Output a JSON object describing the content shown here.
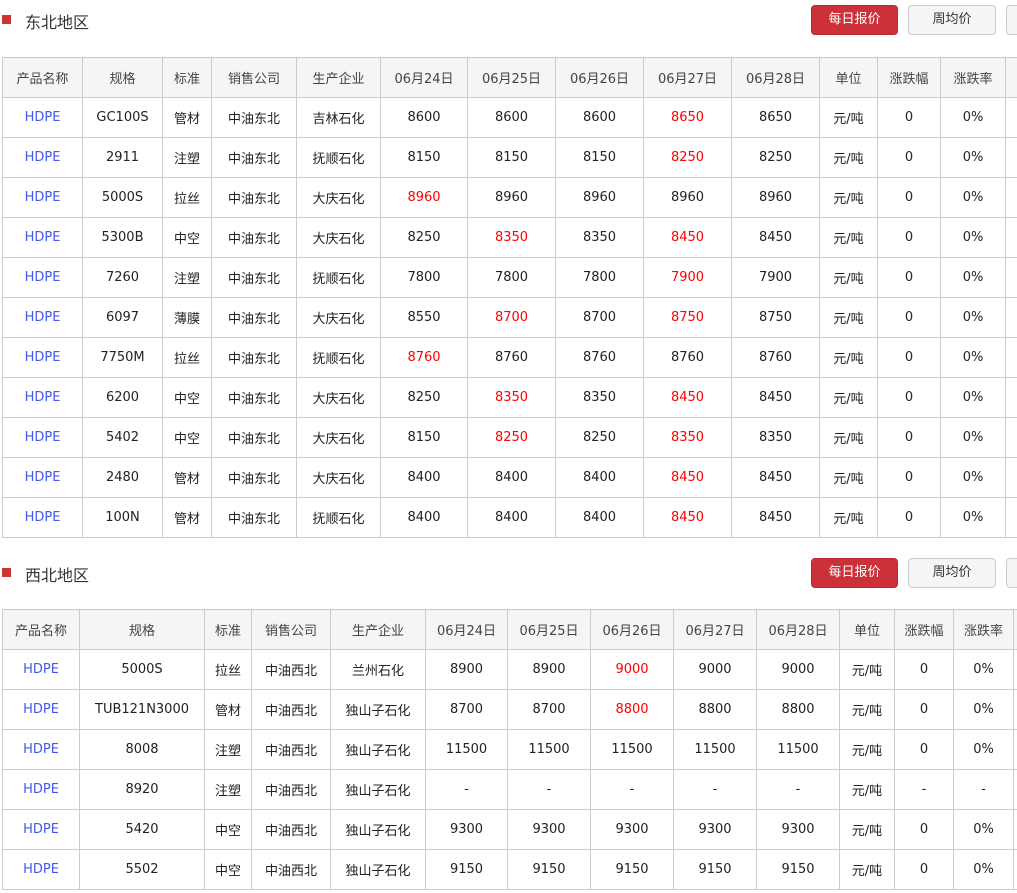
{
  "buttons": {
    "daily": "每日报价",
    "weekly": "周均价"
  },
  "colors": {
    "accent": "#cc3039",
    "link": "#4457f0",
    "rise": "#ff0000"
  },
  "sections": [
    {
      "title": "东北地区",
      "headers": [
        "产品名称",
        "规格",
        "标准",
        "销售公司",
        "生产企业",
        "06月24日",
        "06月25日",
        "06月26日",
        "06月27日",
        "06月28日",
        "单位",
        "涨跌幅",
        "涨跌率"
      ],
      "rows": [
        {
          "cells": [
            "HDPE",
            "GC100S",
            "管材",
            "中油东北",
            "吉林石化",
            "8600",
            "8600",
            "8600",
            "8650",
            "8650",
            "元/吨",
            "0",
            "0%"
          ],
          "red": [
            8
          ]
        },
        {
          "cells": [
            "HDPE",
            "2911",
            "注塑",
            "中油东北",
            "抚顺石化",
            "8150",
            "8150",
            "8150",
            "8250",
            "8250",
            "元/吨",
            "0",
            "0%"
          ],
          "red": [
            8
          ]
        },
        {
          "cells": [
            "HDPE",
            "5000S",
            "拉丝",
            "中油东北",
            "大庆石化",
            "8960",
            "8960",
            "8960",
            "8960",
            "8960",
            "元/吨",
            "0",
            "0%"
          ],
          "red": [
            5
          ]
        },
        {
          "cells": [
            "HDPE",
            "5300B",
            "中空",
            "中油东北",
            "大庆石化",
            "8250",
            "8350",
            "8350",
            "8450",
            "8450",
            "元/吨",
            "0",
            "0%"
          ],
          "red": [
            6,
            8
          ]
        },
        {
          "cells": [
            "HDPE",
            "7260",
            "注塑",
            "中油东北",
            "抚顺石化",
            "7800",
            "7800",
            "7800",
            "7900",
            "7900",
            "元/吨",
            "0",
            "0%"
          ],
          "red": [
            8
          ]
        },
        {
          "cells": [
            "HDPE",
            "6097",
            "薄膜",
            "中油东北",
            "大庆石化",
            "8550",
            "8700",
            "8700",
            "8750",
            "8750",
            "元/吨",
            "0",
            "0%"
          ],
          "red": [
            6,
            8
          ]
        },
        {
          "cells": [
            "HDPE",
            "7750M",
            "拉丝",
            "中油东北",
            "抚顺石化",
            "8760",
            "8760",
            "8760",
            "8760",
            "8760",
            "元/吨",
            "0",
            "0%"
          ],
          "red": [
            5
          ]
        },
        {
          "cells": [
            "HDPE",
            "6200",
            "中空",
            "中油东北",
            "大庆石化",
            "8250",
            "8350",
            "8350",
            "8450",
            "8450",
            "元/吨",
            "0",
            "0%"
          ],
          "red": [
            6,
            8
          ]
        },
        {
          "cells": [
            "HDPE",
            "5402",
            "中空",
            "中油东北",
            "大庆石化",
            "8150",
            "8250",
            "8250",
            "8350",
            "8350",
            "元/吨",
            "0",
            "0%"
          ],
          "red": [
            6,
            8
          ]
        },
        {
          "cells": [
            "HDPE",
            "2480",
            "管材",
            "中油东北",
            "大庆石化",
            "8400",
            "8400",
            "8400",
            "8450",
            "8450",
            "元/吨",
            "0",
            "0%"
          ],
          "red": [
            8
          ]
        },
        {
          "cells": [
            "HDPE",
            "100N",
            "管材",
            "中油东北",
            "抚顺石化",
            "8400",
            "8400",
            "8400",
            "8450",
            "8450",
            "元/吨",
            "0",
            "0%"
          ],
          "red": [
            8
          ]
        }
      ]
    },
    {
      "title": "西北地区",
      "headers": [
        "产品名称",
        "规格",
        "标准",
        "销售公司",
        "生产企业",
        "06月24日",
        "06月25日",
        "06月26日",
        "06月27日",
        "06月28日",
        "单位",
        "涨跌幅",
        "涨跌率"
      ],
      "rows": [
        {
          "cells": [
            "HDPE",
            "5000S",
            "拉丝",
            "中油西北",
            "兰州石化",
            "8900",
            "8900",
            "9000",
            "9000",
            "9000",
            "元/吨",
            "0",
            "0%"
          ],
          "red": [
            7
          ]
        },
        {
          "cells": [
            "HDPE",
            "TUB121N3000",
            "管材",
            "中油西北",
            "独山子石化",
            "8700",
            "8700",
            "8800",
            "8800",
            "8800",
            "元/吨",
            "0",
            "0%"
          ],
          "red": [
            7
          ]
        },
        {
          "cells": [
            "HDPE",
            "8008",
            "注塑",
            "中油西北",
            "独山子石化",
            "11500",
            "11500",
            "11500",
            "11500",
            "11500",
            "元/吨",
            "0",
            "0%"
          ],
          "red": []
        },
        {
          "cells": [
            "HDPE",
            "8920",
            "注塑",
            "中油西北",
            "独山子石化",
            "-",
            "-",
            "-",
            "-",
            "-",
            "元/吨",
            "-",
            "-"
          ],
          "red": []
        },
        {
          "cells": [
            "HDPE",
            "5420",
            "中空",
            "中油西北",
            "独山子石化",
            "9300",
            "9300",
            "9300",
            "9300",
            "9300",
            "元/吨",
            "0",
            "0%"
          ],
          "red": []
        },
        {
          "cells": [
            "HDPE",
            "5502",
            "中空",
            "中油西北",
            "独山子石化",
            "9150",
            "9150",
            "9150",
            "9150",
            "9150",
            "元/吨",
            "0",
            "0%"
          ],
          "red": []
        }
      ]
    }
  ]
}
